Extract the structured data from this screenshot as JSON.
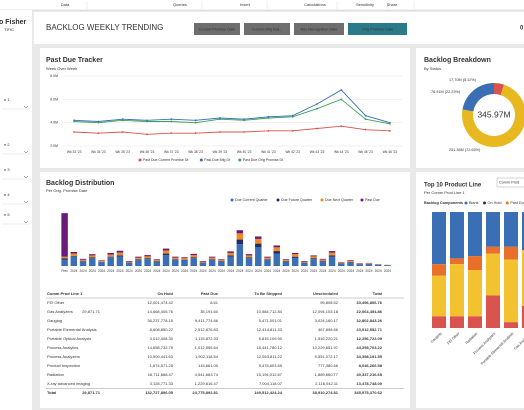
{
  "menu": [
    "Data",
    "Queries",
    "Insert",
    "Calculations",
    "Sensitivity",
    "Share"
  ],
  "logo": {
    "line1": "o Fisher",
    "line2": "TIFIC"
  },
  "sidebar": [
    "e 1",
    "e 2",
    "e 3",
    "e 4",
    "e 5"
  ],
  "header": {
    "title": "BACKLOG WEEKLY TRENDING",
    "buttons": [
      "Current Promise Date",
      "Current Mfg Dat...",
      "Rev Recognition Date",
      "Orig Promise Date"
    ],
    "corner": "0"
  },
  "chart_data": [
    {
      "type": "line",
      "title": "Past Due Tracker",
      "subtitle": "Week Over Week",
      "categories": [
        "Wk 33 '23",
        "Wk 34 '23",
        "Wk 35 '23",
        "Wk 36 '23",
        "Wk 37 '23",
        "Wk 38 '23",
        "Wk 39 '23",
        "Wk 40 '23",
        "Wk 41 '23",
        "Wk 42 '23",
        "Wk 43 '23",
        "Wk 44 '23",
        "Wk 45 '23",
        "Wk 46 '23"
      ],
      "series": [
        {
          "name": "Past Due Current Promise Dt",
          "color": "#d9534f",
          "values": [
            3.2,
            3.1,
            3.2,
            3.0,
            3.1,
            3.1,
            3.2,
            3.2,
            3.3,
            3.3,
            3.5,
            3.7,
            3.4,
            3.3
          ]
        },
        {
          "name": "Past Due Mfg Dt",
          "color": "#3a6fb5",
          "values": [
            4.2,
            4.1,
            4.3,
            4.2,
            4.3,
            4.2,
            4.4,
            4.3,
            4.5,
            4.6,
            5.6,
            6.8,
            4.6,
            4.0
          ]
        },
        {
          "name": "Past Due Orig Promise Dt",
          "color": "#3aa05a",
          "values": [
            4.1,
            4.0,
            4.2,
            4.1,
            4.1,
            4.0,
            4.3,
            4.2,
            4.4,
            4.5,
            5.2,
            6.0,
            4.3,
            3.9
          ]
        }
      ],
      "ylim": [
        2,
        8
      ],
      "yticks": [
        {
          "value": 2,
          "label": "2.0M"
        },
        {
          "value": 4,
          "label": "4.0M"
        },
        {
          "value": 6,
          "label": "6.0M"
        },
        {
          "value": 8,
          "label": "8.0M"
        }
      ],
      "grid": true
    },
    {
      "type": "pie",
      "title": "Backlog Breakdown",
      "subtitle": "By Status",
      "total_label": "345.97M",
      "values": [
        17.7,
        251.36,
        76.91
      ],
      "value_labels": [
        "17.70M (5.12%)",
        "251.36M (72.65%)",
        "76.91M (22.23%)"
      ],
      "colors": [
        "#d9534f",
        "#e8b820",
        "#3a6fb5"
      ]
    },
    {
      "type": "bar",
      "title": "Backlog Distribution",
      "subtitle": "Per Orig. Promise Date",
      "stacked": true,
      "categories": [
        "Prev",
        "2024",
        "2024",
        "2024",
        "2024",
        "2024",
        "2024",
        "2024",
        "2024",
        "2024",
        "2024",
        "2024",
        "2024",
        "2024",
        "2024",
        "2024",
        "2024",
        "2024",
        "2024",
        "2024",
        "2024",
        "2024",
        "2024",
        "2024",
        "2024",
        "2024",
        "2024",
        "2024",
        "2024",
        "2024",
        "2024",
        "2024",
        "2024",
        "2024",
        "2024",
        "2024"
      ],
      "series": [
        {
          "name": "Due Current Quarter",
          "color": "#3a6fb5",
          "values": [
            2,
            3,
            1.5,
            2.5,
            1.2,
            2.8,
            3,
            1,
            2,
            2.2,
            1.5,
            3.5,
            2,
            1.8,
            2.5,
            1,
            2,
            1.5,
            3,
            7,
            2.5,
            6,
            2,
            4,
            1.5,
            2.6,
            1,
            2.2,
            1.5,
            3,
            0.8,
            1.2,
            0.5,
            0.6,
            0.4,
            0.3
          ]
        },
        {
          "name": "Due Future Quarter",
          "color": "#1f2d6b",
          "values": [
            0.5,
            0.2,
            0.1,
            0.3,
            0.1,
            0.2,
            0.4,
            0.1,
            0.2,
            0.3,
            0.1,
            0.5,
            0.2,
            0.2,
            0.3,
            0.1,
            0.2,
            0.1,
            0.4,
            1.5,
            0.3,
            1.2,
            0.2,
            0.8,
            0.1,
            0.4,
            0.1,
            0.3,
            0.2,
            0.4,
            0.1,
            0.1,
            0.1,
            0.1,
            0,
            0
          ]
        },
        {
          "name": "Due Next Quarter",
          "color": "#f08a24",
          "values": [
            0.5,
            0.8,
            0.4,
            0.6,
            0.3,
            0.7,
            0.9,
            0.3,
            0.5,
            0.6,
            0.4,
            1,
            0.5,
            0.5,
            0.7,
            0.3,
            0.5,
            0.4,
            0.8,
            2,
            0.6,
            1.5,
            0.5,
            1.2,
            0.4,
            0.8,
            0.3,
            0.6,
            0.4,
            0.9,
            0.3,
            0.4,
            0.2,
            0.2,
            0.1,
            0.1
          ]
        },
        {
          "name": "Past Due",
          "color": "#6a1b7a",
          "values": [
            14,
            0.5,
            0.3,
            0.4,
            0.2,
            0.5,
            0.6,
            0.2,
            0.3,
            0.4,
            0.2,
            0.6,
            0.3,
            0.3,
            0.4,
            0.2,
            0.3,
            0.2,
            0.5,
            1,
            0.4,
            0.8,
            0.3,
            0.6,
            0.2,
            0.4,
            0.2,
            0.3,
            0.2,
            0.5,
            0.1,
            0.2,
            0.1,
            0.1,
            0.1,
            0
          ]
        }
      ],
      "ylim": [
        0,
        18
      ]
    },
    {
      "type": "bar",
      "title": "Top 10 Product Line",
      "subtitle": "Per Comm Prod Line 1",
      "stacked": true,
      "dropdown": "Comm Prod",
      "legend_title": "Backlog Components",
      "categories": [
        "Gauging",
        "FEI Other",
        "Radiation",
        "Process Analyzers",
        "Portable Elemental Analysis",
        "Gas Analyzers"
      ],
      "series": [
        {
          "name": "Blank",
          "color": "#3a6fb5",
          "values": [
            45,
            40,
            38,
            30,
            30,
            33
          ]
        },
        {
          "name": "On Hold",
          "color": "#1f2d6b",
          "values": [
            0,
            0,
            0,
            0,
            0,
            0
          ]
        },
        {
          "name": "Past Due",
          "color": "#e8702a",
          "values": [
            10,
            5,
            12,
            6,
            11,
            0
          ]
        },
        {
          "name": "To Be Shipped",
          "color": "#f2c230",
          "values": [
            35,
            45,
            40,
            36,
            54,
            48
          ]
        },
        {
          "name": "Unscheduled",
          "color": "#d9534f",
          "values": [
            10,
            10,
            10,
            28,
            5,
            19
          ]
        }
      ],
      "ylim": [
        0,
        100
      ]
    }
  ],
  "table": {
    "header": [
      "Comm Prod Line 1",
      null,
      "On Hold",
      "Past Due",
      "To Be Shipped",
      "Unscheduled",
      "Total"
    ],
    "rows": [
      [
        "FEI Other",
        null,
        "12,001,474.42",
        "8.61",
        null,
        "95,808.52",
        "33,496,806.76"
      ],
      [
        "Gas Analyzers",
        "29,871.71",
        "14,668,405.76",
        "35,191.60",
        "10,584,712.84",
        "12,094,103.18",
        "22,064,454.86"
      ],
      [
        "Gauging",
        null,
        "36,237,778.15",
        "9,411,774.86",
        "5,471,001.01",
        "3,024,160.17",
        "32,802,843.26"
      ],
      [
        "Portable Elemental Analysis",
        null,
        "8,608,850.22",
        "2,512,876.83",
        "12,414,811.33",
        "467,898.66",
        "23,012,952.71"
      ],
      [
        "Portable Optical Analysis",
        null,
        "3,012,408.30",
        "1,115,872.33",
        "6,815,109.90",
        "1,516,220.21",
        "12,256,722.09"
      ],
      [
        "Process Analytics",
        null,
        "14,658,732.79",
        "1,012,555.64",
        "18,441,780.12",
        "10,229,651.97",
        "44,295,703.22"
      ],
      [
        "Process Analyzers",
        null,
        "10,509,441.63",
        "1,902,118.54",
        "12,553,811.22",
        "9,551,072.17",
        "34,398,191.55"
      ],
      [
        "Product Inspection",
        null,
        "1,674,571.25",
        "115,661.00",
        "5,478,603.65",
        "777,380.66",
        "8,046,266.58"
      ],
      [
        "Radiation",
        null,
        "18,711,668.47",
        "4,541,663.74",
        "15,194,012.67",
        "1,889,660.77",
        "40,337,216.65"
      ],
      [
        "X-ray advanced imaging",
        null,
        "3,128,771.33",
        "1,229,816.47",
        "7,004,118.07",
        "2,116,042.11",
        "13,478,748.00"
      ],
      [
        "Total",
        "29,871.71",
        "132,727,896.05",
        "24,775,892.81",
        "149,512,424.24",
        "38,910,274.81",
        "345,975,370.62"
      ]
    ]
  }
}
